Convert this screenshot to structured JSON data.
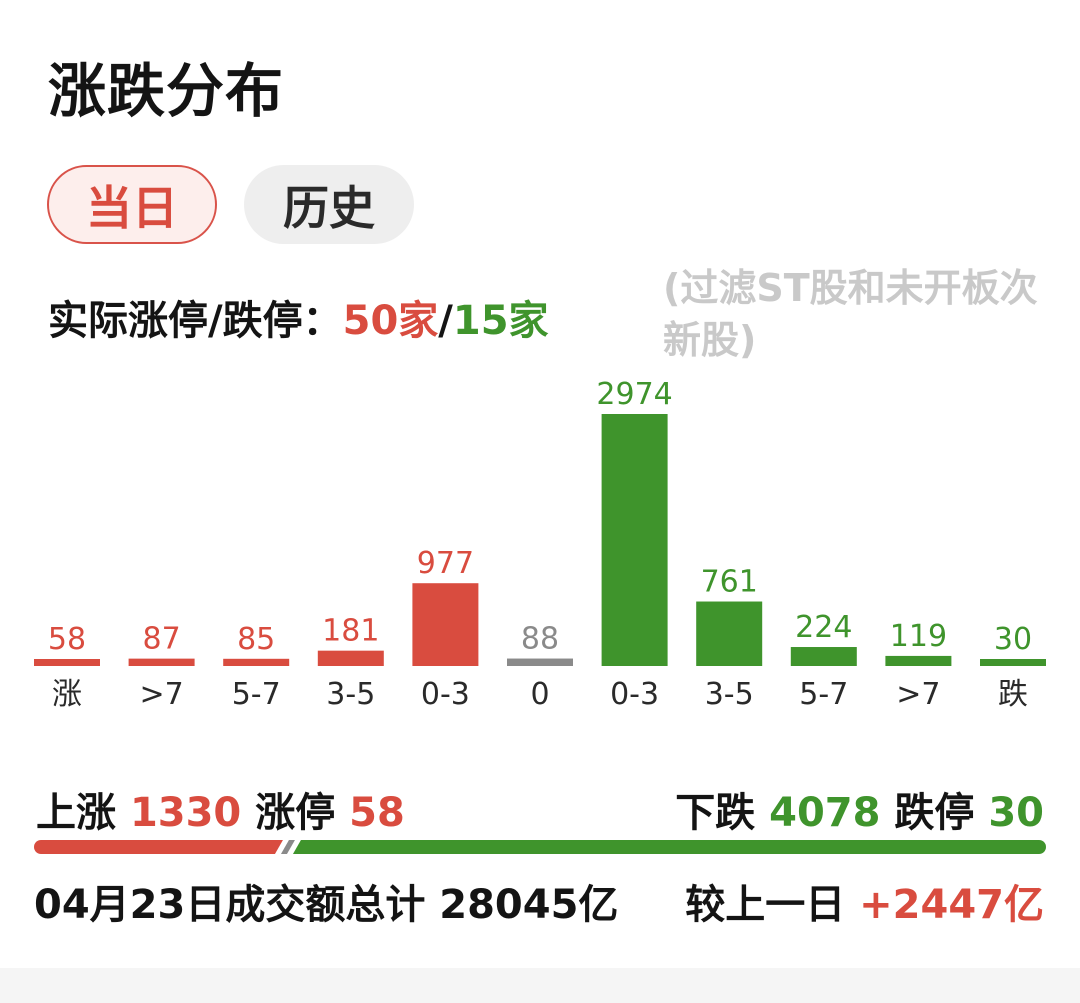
{
  "header": {
    "title": "涨跌分布"
  },
  "tabs": [
    {
      "label": "当日",
      "active": true
    },
    {
      "label": "历史",
      "active": false
    }
  ],
  "limit_summary": {
    "label": "实际涨停/跌停：",
    "limit_up": "50家",
    "separator": "/",
    "limit_down": "15家",
    "note": "(过滤ST股和未开板次新股)"
  },
  "colors": {
    "up": "#d94c3f",
    "flat": "#8a8a8a",
    "down": "#3f942c"
  },
  "chart_data": {
    "type": "bar",
    "categories": [
      "涨",
      ">7",
      "5-7",
      "3-5",
      "0-3",
      "0",
      "0-3",
      "3-5",
      "5-7",
      ">7",
      "跌"
    ],
    "values": [
      58,
      87,
      85,
      181,
      977,
      88,
      2974,
      761,
      224,
      119,
      30
    ],
    "bar_colors": [
      "up",
      "up",
      "up",
      "up",
      "up",
      "flat",
      "down",
      "down",
      "down",
      "down",
      "down"
    ],
    "data_labels": true,
    "grid": false,
    "legend": "none"
  },
  "totals": {
    "up_label": "上涨",
    "up_count": "1330",
    "limit_up_label": "涨停",
    "limit_up_count": "58",
    "down_label": "下跌",
    "down_count": "4078",
    "limit_down_label": "跌停",
    "limit_down_count": "30",
    "up_share": 0.246
  },
  "turnover": {
    "text": "04月23日成交额总计 28045亿",
    "compare_label": "较上一日",
    "compare_value": "+2447亿"
  }
}
